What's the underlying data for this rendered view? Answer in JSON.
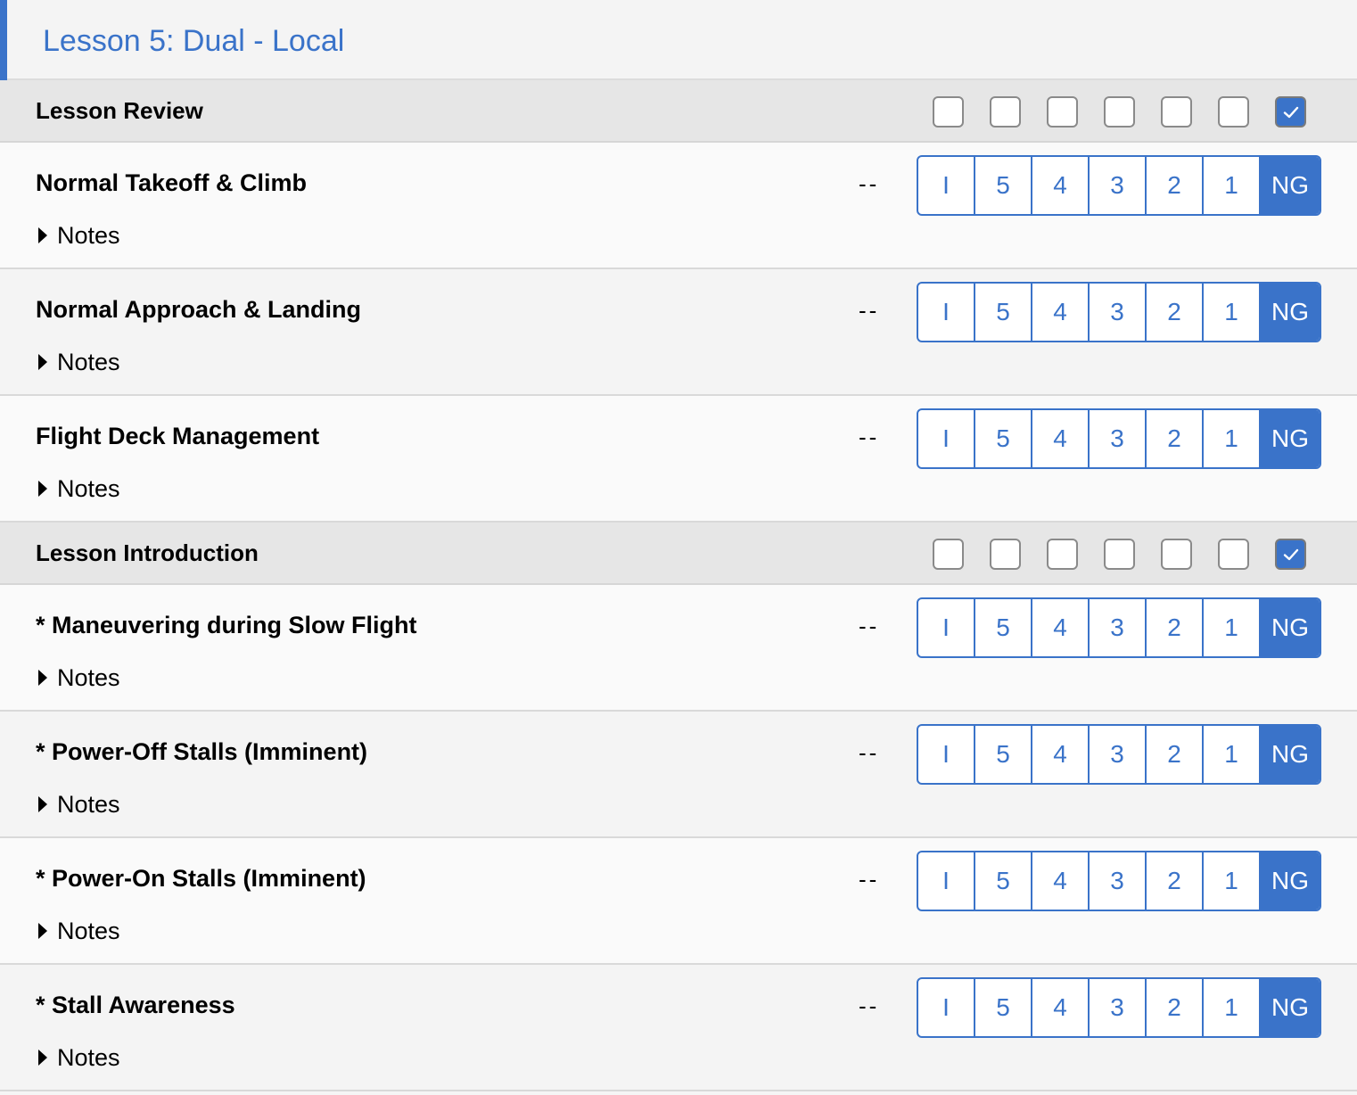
{
  "lesson": {
    "title": "Lesson 5: Dual - Local"
  },
  "colors": {
    "accent": "#3a73c9",
    "section_bg": "#e6e6e6"
  },
  "grade_options": [
    "I",
    "5",
    "4",
    "3",
    "2",
    "1",
    "NG"
  ],
  "selected_grade": "NG",
  "sections": [
    {
      "title": "Lesson Review",
      "checkboxes": [
        false,
        false,
        false,
        false,
        false,
        false,
        true
      ],
      "items": [
        {
          "title": "Normal Takeoff & Climb",
          "grade_display": "--",
          "notes_label": "Notes"
        },
        {
          "title": "Normal Approach & Landing",
          "grade_display": "--",
          "notes_label": "Notes"
        },
        {
          "title": "Flight Deck Management",
          "grade_display": "--",
          "notes_label": "Notes"
        }
      ]
    },
    {
      "title": "Lesson Introduction",
      "checkboxes": [
        false,
        false,
        false,
        false,
        false,
        false,
        true
      ],
      "items": [
        {
          "title": "* Maneuvering during Slow Flight",
          "grade_display": "--",
          "notes_label": "Notes"
        },
        {
          "title": "* Power-Off Stalls (Imminent)",
          "grade_display": "--",
          "notes_label": "Notes"
        },
        {
          "title": "* Power-On Stalls (Imminent)",
          "grade_display": "--",
          "notes_label": "Notes"
        },
        {
          "title": "* Stall Awareness",
          "grade_display": "--",
          "notes_label": "Notes"
        }
      ]
    }
  ]
}
